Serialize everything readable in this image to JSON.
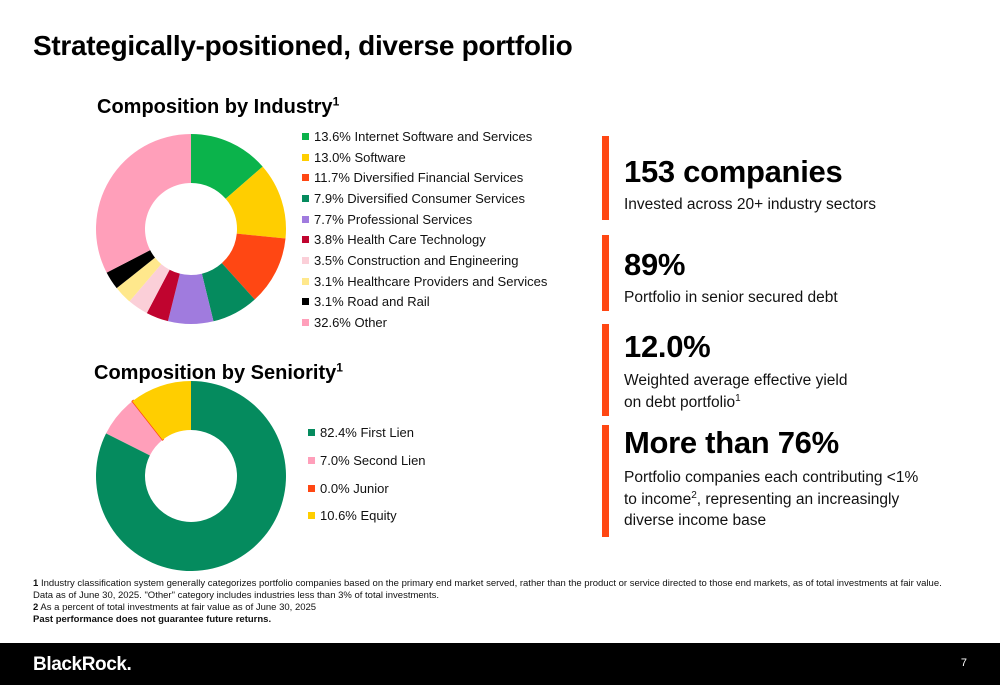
{
  "page": {
    "title": "Strategically-positioned, diverse portfolio",
    "page_number": "7",
    "logo": "BlackRock."
  },
  "charts": {
    "industry": {
      "title": "Composition by Industry",
      "footnote_mark": "1"
    },
    "seniority": {
      "title": "Composition by Seniority",
      "footnote_mark": "1"
    }
  },
  "chart_data": [
    {
      "type": "pie",
      "title": "Composition by Industry",
      "donut": true,
      "legend_position": "right",
      "slices": [
        {
          "label": "13.6% Internet Software and Services",
          "name": "Internet Software and Services",
          "value": 13.6,
          "color": "#0bb34b"
        },
        {
          "label": "13.0% Software",
          "name": "Software",
          "value": 13.0,
          "color": "#ffce00"
        },
        {
          "label": "11.7% Diversified Financial Services",
          "name": "Diversified Financial Services",
          "value": 11.7,
          "color": "#ff4713"
        },
        {
          "label": "7.9% Diversified Consumer Services",
          "name": "Diversified Consumer Services",
          "value": 7.9,
          "color": "#058b5e"
        },
        {
          "label": "7.7% Professional Services",
          "name": "Professional Services",
          "value": 7.7,
          "color": "#a07bde"
        },
        {
          "label": "3.8% Health Care Technology",
          "name": "Health Care Technology",
          "value": 3.8,
          "color": "#c0042f"
        },
        {
          "label": "3.5% Construction and Engineering",
          "name": "Construction and Engineering",
          "value": 3.5,
          "color": "#fbcfd8"
        },
        {
          "label": "3.1% Healthcare Providers and Services",
          "name": "Healthcare Providers and Services",
          "value": 3.1,
          "color": "#ffe88c"
        },
        {
          "label": "3.1% Road and Rail",
          "name": "Road and Rail",
          "value": 3.1,
          "color": "#000000"
        },
        {
          "label": "32.6% Other",
          "name": "Other",
          "value": 32.6,
          "color": "#ff9fba"
        }
      ]
    },
    {
      "type": "pie",
      "title": "Composition by Seniority",
      "donut": true,
      "legend_position": "right",
      "slices": [
        {
          "label": "82.4% First Lien",
          "name": "First Lien",
          "value": 82.4,
          "color": "#058b5e"
        },
        {
          "label": "7.0% Second Lien",
          "name": "Second Lien",
          "value": 7.0,
          "color": "#ff9fba"
        },
        {
          "label": "0.0% Junior",
          "name": "Junior",
          "value": 0.0,
          "color": "#ff4713"
        },
        {
          "label": "10.6% Equity",
          "name": "Equity",
          "value": 10.6,
          "color": "#ffce00"
        }
      ]
    }
  ],
  "stats": [
    {
      "value": "153 companies",
      "desc": "Invested across 20+ industry sectors"
    },
    {
      "value": "89%",
      "desc": "Portfolio in senior secured debt"
    },
    {
      "value": "12.0%",
      "desc_line1": "Weighted average effective yield",
      "desc_line2": "on debt portfolio",
      "desc_sup": "1"
    },
    {
      "value": "More than 76%",
      "desc_line1": "Portfolio companies each contributing <1%",
      "desc_line2a": "to income",
      "desc_sup": "2",
      "desc_line2b": ", representing an increasingly",
      "desc_line3": "diverse income base"
    }
  ],
  "footnotes": {
    "n1_mark": "1",
    "n1_text": "Industry classification system generally categorizes portfolio companies based on the primary end market served, rather than the product or service directed to those end markets, as of total investments at fair value.  Data as of June 30, 2025. \"Other\" category includes industries less than 3% of total investments.",
    "n2_mark": "2",
    "n2_text": "As a percent of total investments at fair value as of June 30, 2025",
    "disclaimer": "Past performance does not guarantee future returns."
  },
  "colors": {
    "accent": "#ff4713",
    "footer_bg": "#000000"
  }
}
